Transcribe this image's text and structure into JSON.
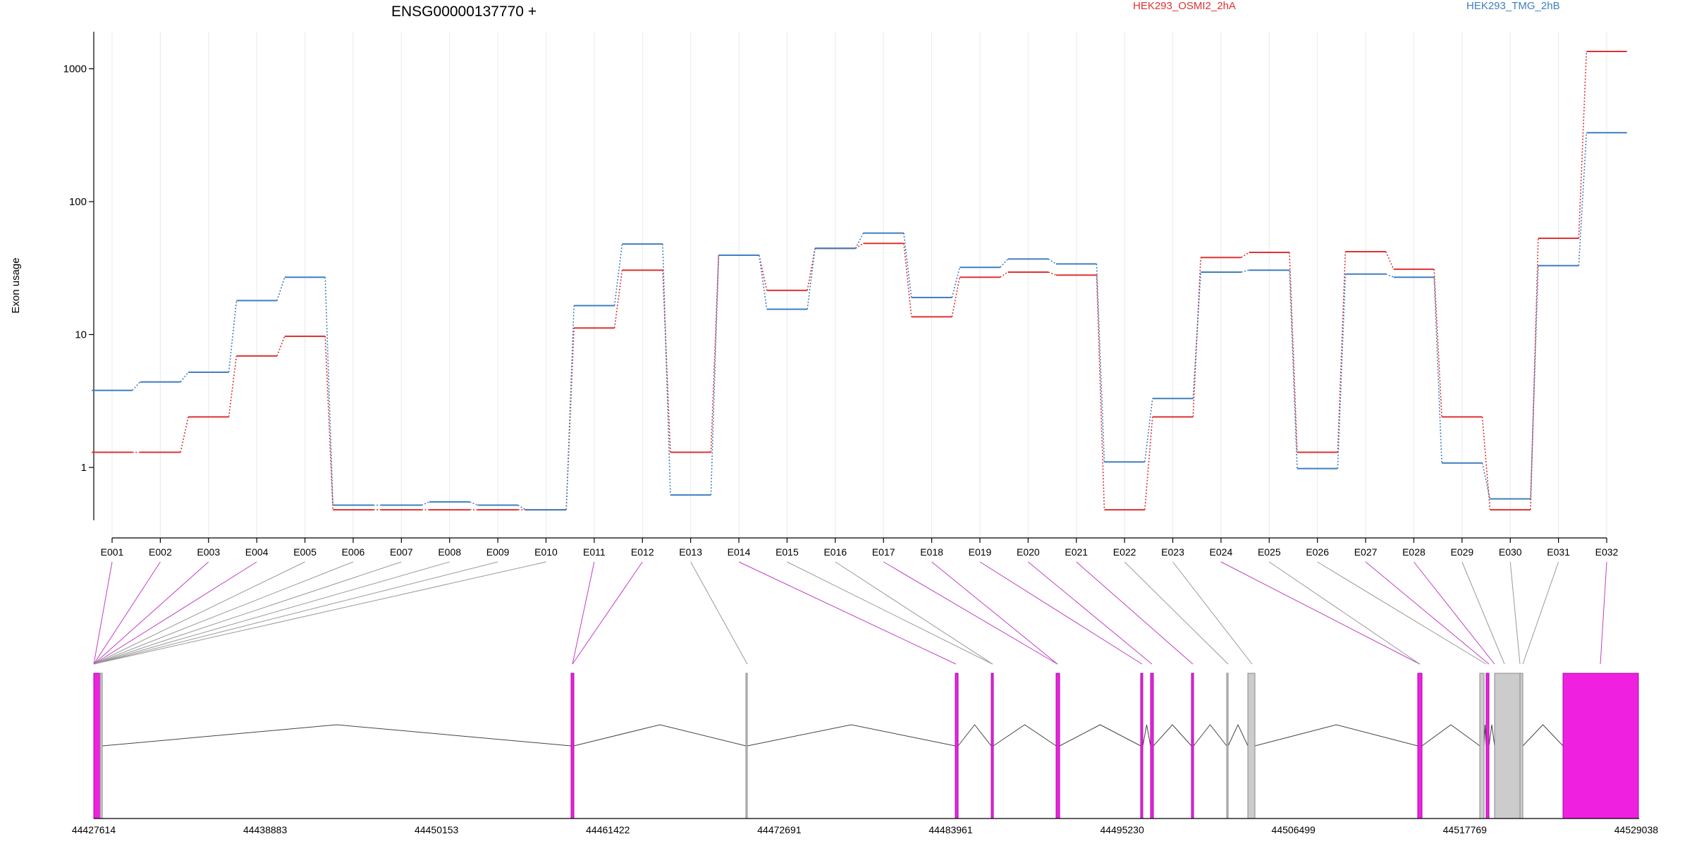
{
  "chart_data": {
    "type": "line",
    "title": "ENSG00000137770 +",
    "ylabel": "Exon usage",
    "xlabel": "",
    "yscale": "log",
    "ylim": [
      0.4,
      1900
    ],
    "yticks": [
      "1",
      "10",
      "100",
      "1000"
    ],
    "grid": "vertical",
    "legend_position": "top",
    "categories": [
      "E001",
      "E002",
      "E003",
      "E004",
      "E005",
      "E006",
      "E007",
      "E008",
      "E009",
      "E010",
      "E011",
      "E012",
      "E013",
      "E014",
      "E015",
      "E016",
      "E017",
      "E018",
      "E019",
      "E020",
      "E021",
      "E022",
      "E023",
      "E024",
      "E025",
      "E026",
      "E027",
      "E028",
      "E029",
      "E030",
      "E031",
      "E032"
    ],
    "series": [
      {
        "name": "HEK293_OSMI2_2hA",
        "color": "#e03131",
        "values": [
          1.3,
          1.3,
          2.4,
          6.9,
          9.7,
          0.48,
          0.48,
          0.48,
          0.48,
          0.48,
          11.2,
          30.5,
          1.3,
          39.5,
          21.5,
          44.5,
          48.5,
          13.6,
          27,
          29.5,
          28,
          0.48,
          2.4,
          38,
          41.5,
          1.3,
          42,
          31,
          2.4,
          0.48,
          53,
          1350
        ]
      },
      {
        "name": "HEK293_TMG_2hB",
        "color": "#3f7fbf",
        "values": [
          3.8,
          4.4,
          5.2,
          18,
          27,
          0.52,
          0.52,
          0.55,
          0.52,
          0.48,
          16.5,
          48,
          0.62,
          39.5,
          15.5,
          44.5,
          58,
          19,
          32,
          37,
          34,
          1.1,
          3.3,
          29.5,
          30.5,
          0.98,
          28.5,
          27,
          1.08,
          0.58,
          33,
          330
        ]
      }
    ],
    "gene_model": {
      "coordinate_ticks": [
        "44427614",
        "44438883",
        "44450153",
        "44461422",
        "44472691",
        "44483961",
        "44495230",
        "44506499",
        "44517769",
        "44529038"
      ],
      "exon_colors": {
        "significant": "#f020e0",
        "nonsignificant": "#cccccc"
      }
    }
  }
}
